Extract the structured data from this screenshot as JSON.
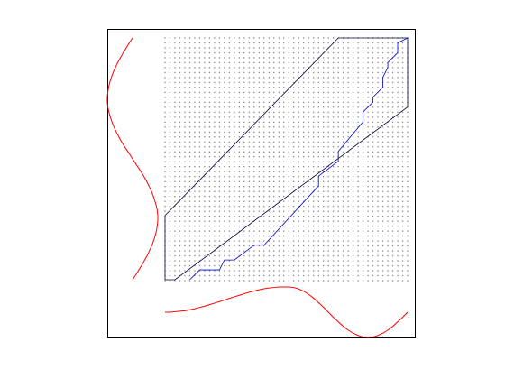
{
  "chart_data": {
    "type": "dtw",
    "query": {
      "color": "#ff0000",
      "values": [
        0,
        0.13,
        0.25,
        0.37,
        0.48,
        0.59,
        0.68,
        0.77,
        0.84,
        0.9,
        0.95,
        0.98,
        1.0,
        1.0,
        0.98,
        0.94,
        0.88,
        0.82,
        0.74,
        0.65,
        0.55,
        0.44,
        0.32,
        0.19,
        0.06,
        -0.06,
        -0.19,
        -0.32,
        -0.44,
        -0.55,
        -0.65,
        -0.74,
        -0.82,
        -0.88,
        -0.94,
        -0.98,
        -1.0,
        -1.0,
        -0.98,
        -0.95,
        -0.9,
        -0.84,
        -0.77,
        -0.68,
        -0.59,
        -0.48,
        -0.37,
        -0.25,
        -0.13,
        0
      ]
    },
    "reference": {
      "color": "#ff0000",
      "values": [
        0,
        0.0,
        0.02,
        0.04,
        0.06,
        0.1,
        0.14,
        0.19,
        0.24,
        0.3,
        0.36,
        0.42,
        0.48,
        0.55,
        0.61,
        0.67,
        0.73,
        0.79,
        0.84,
        0.89,
        0.93,
        0.96,
        0.98,
        1.0,
        1.0,
        1.0,
        0.98,
        0.92,
        0.83,
        0.71,
        0.56,
        0.38,
        0.2,
        0.0,
        -0.2,
        -0.38,
        -0.56,
        -0.71,
        -0.83,
        -0.92,
        -0.98,
        -1.0,
        -0.98,
        -0.92,
        -0.83,
        -0.71,
        -0.56,
        -0.38,
        -0.2,
        0.0
      ]
    },
    "window": {
      "color": "#000033",
      "x": [
        0,
        35,
        49,
        49,
        2,
        0,
        0
      ],
      "y": [
        13,
        49,
        49,
        35,
        0,
        0,
        13
      ]
    },
    "path": {
      "color": "#0000cc",
      "x": [
        5,
        7,
        11,
        12,
        14,
        18,
        20,
        31,
        31,
        35,
        35,
        40,
        40,
        42,
        42,
        44,
        44,
        45,
        45,
        47,
        47,
        49
      ],
      "y": [
        0,
        2,
        2,
        4,
        4,
        7,
        7,
        19,
        21,
        24,
        26,
        32,
        34,
        36,
        37,
        39,
        41,
        43,
        44,
        46,
        48,
        49
      ]
    }
  }
}
